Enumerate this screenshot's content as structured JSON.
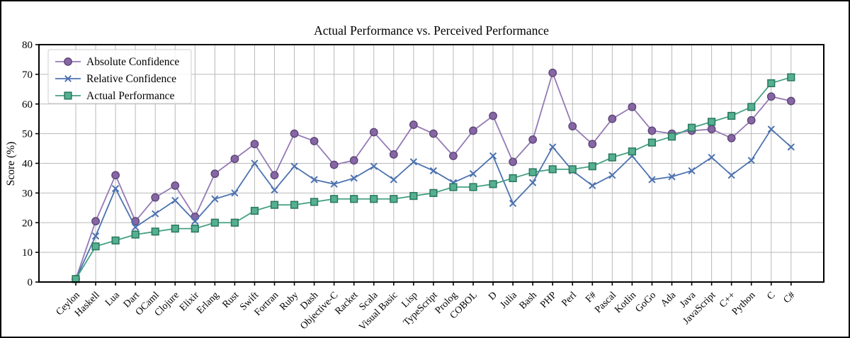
{
  "figure": {
    "background": "#ffffff",
    "border_color": "#000000",
    "gridline_color": "#b9b9b9"
  },
  "chart_data": {
    "type": "line",
    "title": "Actual Performance vs. Perceived Performance",
    "xlabel": "",
    "ylabel": "Score (%)",
    "ylim": [
      0,
      80
    ],
    "yticks": [
      0,
      10,
      20,
      30,
      40,
      50,
      60,
      70,
      80
    ],
    "grid": true,
    "legend_position": "upper-left",
    "categories": [
      "Ceylon",
      "Haskell",
      "Lua",
      "Dart",
      "OCaml",
      "Clojure",
      "Elixir",
      "Erlang",
      "Rust",
      "Swift",
      "Fortran",
      "Ruby",
      "Dash",
      "Objective-C",
      "Racket",
      "Scala",
      "Visual Basic",
      "Lisp",
      "TypeScript",
      "Prolog",
      "COBOL",
      "D",
      "Julia",
      "Bash",
      "PHP",
      "Perl",
      "F#",
      "Pascal",
      "Kotlin",
      "GoGo",
      "Ada",
      "Java",
      "JavaScript",
      "C++",
      "Python",
      "C",
      "C#"
    ],
    "series": [
      {
        "name": "Absolute Confidence",
        "marker": "circle",
        "color": "#9579b5",
        "marker_fill": "#8766a5",
        "marker_edge": "#5d4677",
        "values": [
          1,
          20.5,
          36,
          20.5,
          28.5,
          32.5,
          22,
          36.5,
          41.5,
          46.5,
          36,
          50,
          47.5,
          39.5,
          41,
          50.5,
          43,
          53,
          50,
          42.5,
          51,
          56,
          40.5,
          48,
          70.5,
          52.5,
          46.5,
          55,
          59,
          51,
          50,
          51,
          51.5,
          48.5,
          54.5,
          62.5,
          61
        ]
      },
      {
        "name": "Relative Confidence",
        "marker": "x",
        "color": "#4c72b0",
        "marker_fill": "#4c72b0",
        "marker_edge": "#4c72b0",
        "values": [
          1,
          15.5,
          31.5,
          18.5,
          23,
          27.5,
          20.5,
          28,
          30,
          40,
          31,
          39,
          34.5,
          33,
          35,
          39,
          34.5,
          40.5,
          37.5,
          33.5,
          36.5,
          42.5,
          26.5,
          33.5,
          45.5,
          37.5,
          32.5,
          36,
          42.5,
          34.5,
          35.5,
          37.5,
          42,
          36,
          41,
          51.5,
          45.5
        ]
      },
      {
        "name": "Actual Performance",
        "marker": "square",
        "color": "#44a183",
        "marker_fill": "#55b092",
        "marker_edge": "#2c7a5f",
        "values": [
          1,
          12,
          14,
          16,
          17,
          18,
          18,
          20,
          20,
          24,
          26,
          26,
          27,
          28,
          28,
          28,
          28,
          29,
          30,
          32,
          32,
          33,
          35,
          37,
          38,
          38,
          39,
          42,
          44,
          47,
          49,
          52,
          54,
          56,
          59,
          67,
          69
        ]
      }
    ]
  }
}
